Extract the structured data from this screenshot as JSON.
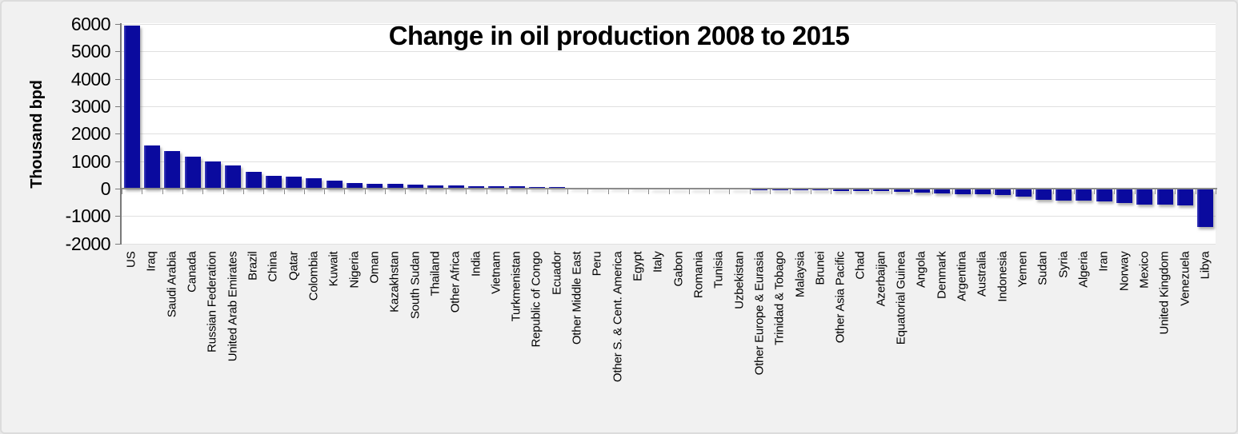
{
  "chart_data": {
    "type": "bar",
    "title": "Change in oil production 2008 to 2015",
    "ylabel": "Thousand bpd",
    "ylim": [
      -2000,
      6000
    ],
    "yticks": [
      6000,
      5000,
      4000,
      3000,
      2000,
      1000,
      0,
      -1000,
      -2000
    ],
    "grid": true,
    "legend": "none",
    "bar_color": "#0A0A9E",
    "background_color": "#F1F1F1",
    "plot_background_color": "#FFFFFF",
    "categories": [
      "US",
      "Iraq",
      "Saudi Arabia",
      "Canada",
      "Russian Federation",
      "United Arab Emirates",
      "Brazil",
      "China",
      "Qatar",
      "Colombia",
      "Kuwait",
      "Nigeria",
      "Oman",
      "Kazakhstan",
      "South Sudan",
      "Thailand",
      "Other Africa",
      "India",
      "Vietnam",
      "Turkmenistan",
      "Republic of Congo",
      "Ecuador",
      "Other Middle East",
      "Peru",
      "Other S. & Cent. America",
      "Egypt",
      "Italy",
      "Gabon",
      "Romania",
      "Tunisia",
      "Uzbekistan",
      "Other Europe & Eurasia",
      "Trinidad & Tobago",
      "Malaysia",
      "Brunei",
      "Other Asia Pacific",
      "Chad",
      "Azerbaijan",
      "Equatorial Guinea",
      "Angola",
      "Denmark",
      "Argentina",
      "Australia",
      "Indonesia",
      "Yemen",
      "Sudan",
      "Syria",
      "Algeria",
      "Iran",
      "Norway",
      "Mexico",
      "United Kingdom",
      "Venezuela",
      "Libya"
    ],
    "values": [
      5930,
      1570,
      1360,
      1165,
      1000,
      850,
      605,
      460,
      435,
      380,
      280,
      205,
      180,
      165,
      150,
      125,
      110,
      100,
      88,
      78,
      68,
      58,
      42,
      32,
      25,
      18,
      10,
      -15,
      -25,
      -35,
      -42,
      -48,
      -55,
      -62,
      -68,
      -75,
      -85,
      -95,
      -115,
      -150,
      -180,
      -195,
      -210,
      -225,
      -295,
      -420,
      -430,
      -450,
      -480,
      -525,
      -575,
      -590,
      -620,
      -1400
    ]
  }
}
